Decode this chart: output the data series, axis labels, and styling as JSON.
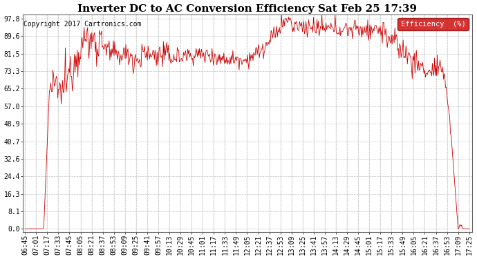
{
  "title": "Inverter DC to AC Conversion Efficiency Sat Feb 25 17:39",
  "copyright": "Copyright 2017 Cartronics.com",
  "legend_label": "Efficiency  (%)",
  "legend_bg": "#cc0000",
  "legend_fg": "#ffffff",
  "line_color": "#cc0000",
  "bg_color": "#ffffff",
  "plot_bg": "#ffffff",
  "grid_color": "#bbbbbb",
  "yticks": [
    0.0,
    8.1,
    16.3,
    24.4,
    32.6,
    40.7,
    48.9,
    57.0,
    65.2,
    73.3,
    81.5,
    89.6,
    97.8
  ],
  "xtick_labels": [
    "06:45",
    "07:01",
    "07:17",
    "07:33",
    "07:45",
    "08:05",
    "08:21",
    "08:37",
    "08:53",
    "09:09",
    "09:25",
    "09:41",
    "09:57",
    "10:13",
    "10:29",
    "10:45",
    "11:01",
    "11:17",
    "11:33",
    "11:49",
    "12:05",
    "12:21",
    "12:37",
    "12:53",
    "13:09",
    "13:25",
    "13:41",
    "13:57",
    "14:13",
    "14:29",
    "14:45",
    "15:01",
    "15:17",
    "15:33",
    "15:49",
    "16:05",
    "16:21",
    "16:37",
    "16:53",
    "17:09",
    "17:25"
  ],
  "ymin": 0.0,
  "ymax": 97.8,
  "title_fontsize": 11,
  "copyright_fontsize": 7,
  "tick_fontsize": 7
}
